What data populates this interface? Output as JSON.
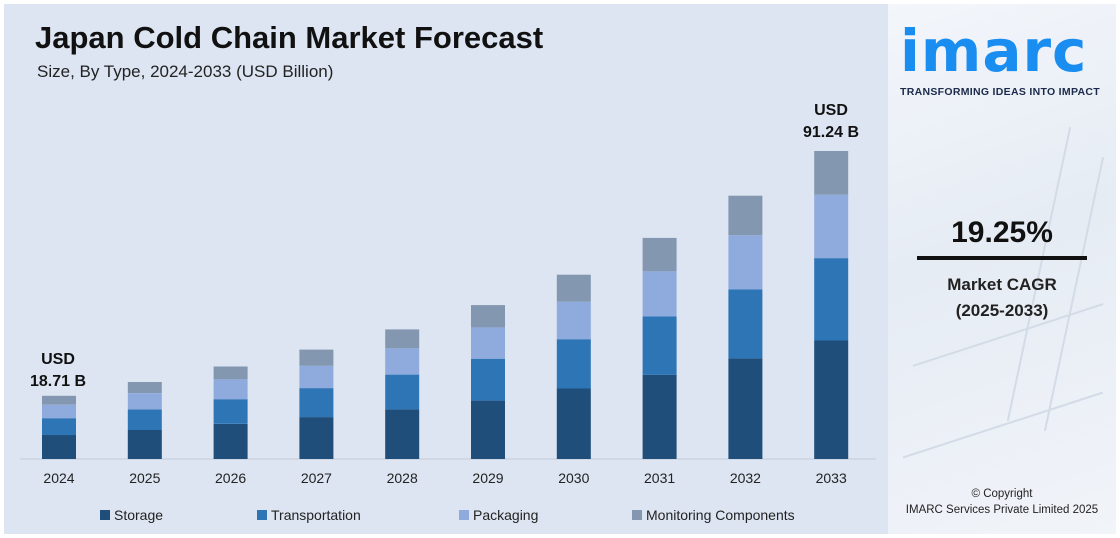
{
  "title": "Japan Cold Chain Market Forecast",
  "subtitle": "Size, By Type, 2024-2033 (USD Billion)",
  "callouts": {
    "start": {
      "line1": "USD",
      "line2": "18.71 B"
    },
    "end": {
      "line1": "USD",
      "line2": "91.24 B"
    }
  },
  "cagr": {
    "value": "19.25%",
    "label": "Market CAGR",
    "period": "(2025-2033)"
  },
  "brand": {
    "name": "imarc",
    "tagline": "TRANSFORMING IDEAS INTO IMPACT"
  },
  "footer": {
    "line1": "© Copyright",
    "line2": "IMARC Services Private Limited 2025"
  },
  "colors": {
    "storage": "#1f4e7b",
    "transportation": "#2e75b6",
    "packaging": "#8faadc",
    "monitoring": "#8497b0",
    "brand": "#1a8ef0"
  },
  "chart_data": {
    "type": "bar",
    "stacked": true,
    "categories": [
      "2024",
      "2025",
      "2026",
      "2027",
      "2028",
      "2029",
      "2030",
      "2031",
      "2032",
      "2033"
    ],
    "series": [
      {
        "name": "Storage",
        "values": [
          7.1,
          8.6,
          10.4,
          12.4,
          14.7,
          17.3,
          20.9,
          24.9,
          29.8,
          35.1
        ]
      },
      {
        "name": "Transportation",
        "values": [
          5.0,
          6.1,
          7.3,
          8.6,
          10.3,
          12.4,
          14.6,
          17.3,
          20.4,
          24.4
        ]
      },
      {
        "name": "Packaging",
        "values": [
          4.0,
          4.8,
          5.9,
          6.6,
          7.8,
          9.3,
          11.1,
          13.4,
          16.1,
          18.8
        ]
      },
      {
        "name": "Monitoring Components",
        "values": [
          2.61,
          3.3,
          3.8,
          4.8,
          5.6,
          6.6,
          8.0,
          9.9,
          11.7,
          12.94
        ]
      }
    ],
    "totals": [
      18.71,
      null,
      null,
      null,
      null,
      null,
      null,
      null,
      null,
      91.24
    ],
    "legend_position": "bottom",
    "grid": false
  }
}
